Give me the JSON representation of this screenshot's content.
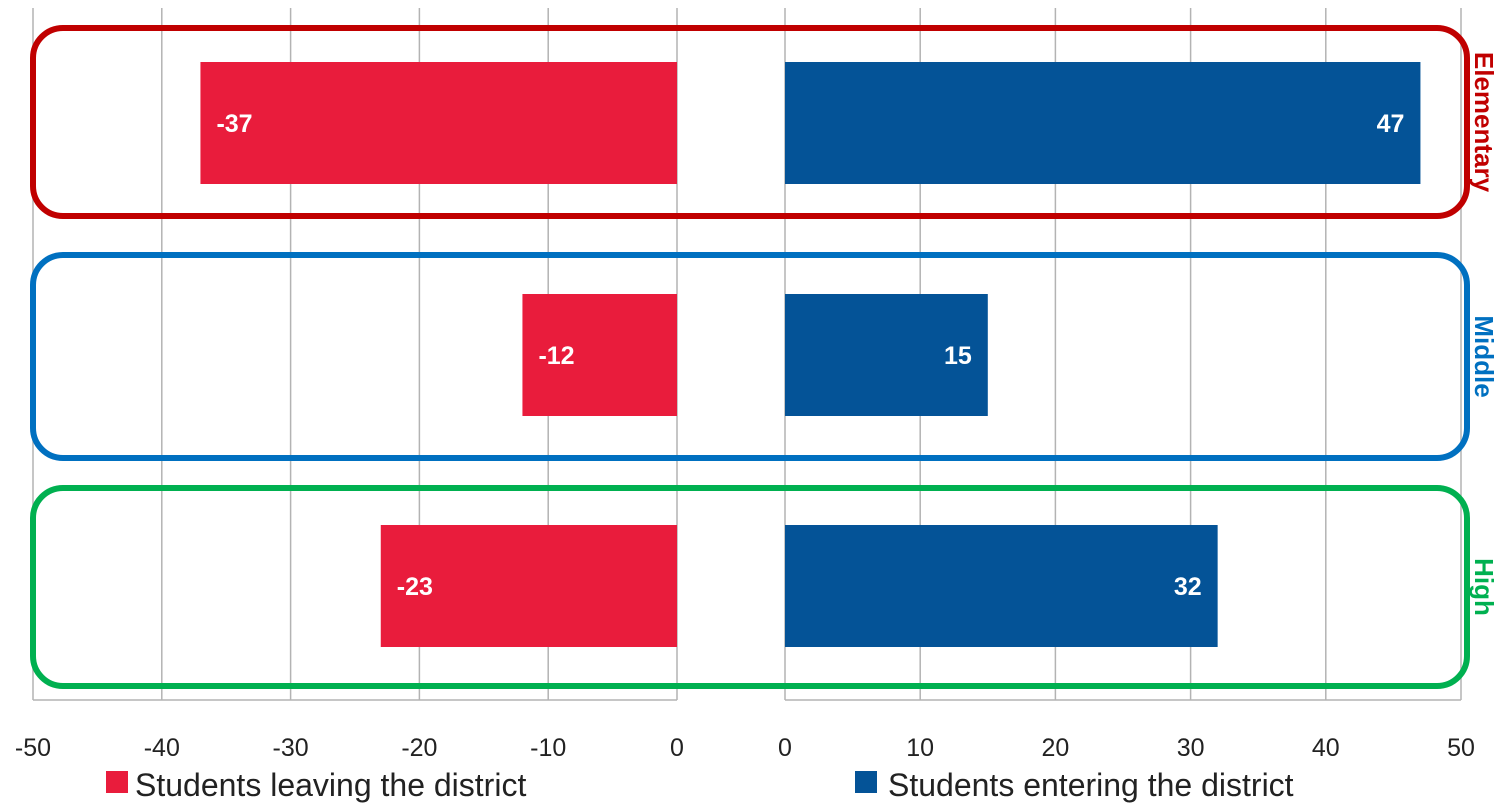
{
  "chart_data": {
    "type": "bar",
    "orientation": "horizontal",
    "layout": "back-to-back",
    "categories": [
      "Elementary",
      "Middle",
      "High"
    ],
    "series": [
      {
        "name": "Students leaving the district",
        "values": [
          -37,
          -12,
          -23
        ],
        "color": "#E91C3C"
      },
      {
        "name": "Students entering the district",
        "values": [
          47,
          15,
          32
        ],
        "color": "#045397"
      }
    ],
    "left_axis": {
      "ticks": [
        -50,
        -40,
        -30,
        -20,
        -10,
        0
      ],
      "tick_labels": [
        "-50",
        "-40",
        "-30",
        "-20",
        "-10",
        "0"
      ],
      "range": [
        -50,
        0
      ]
    },
    "right_axis": {
      "ticks": [
        0,
        10,
        20,
        30,
        40,
        50
      ],
      "tick_labels": [
        "0",
        "10",
        "20",
        "30",
        "40",
        "50"
      ],
      "range": [
        0,
        50
      ]
    },
    "group_colors": {
      "Elementary": "#C00000",
      "Middle": "#0070C0",
      "High": "#00B050"
    },
    "grid": true,
    "legend_position": "bottom",
    "title": "",
    "xlabel": "",
    "ylabel": ""
  }
}
